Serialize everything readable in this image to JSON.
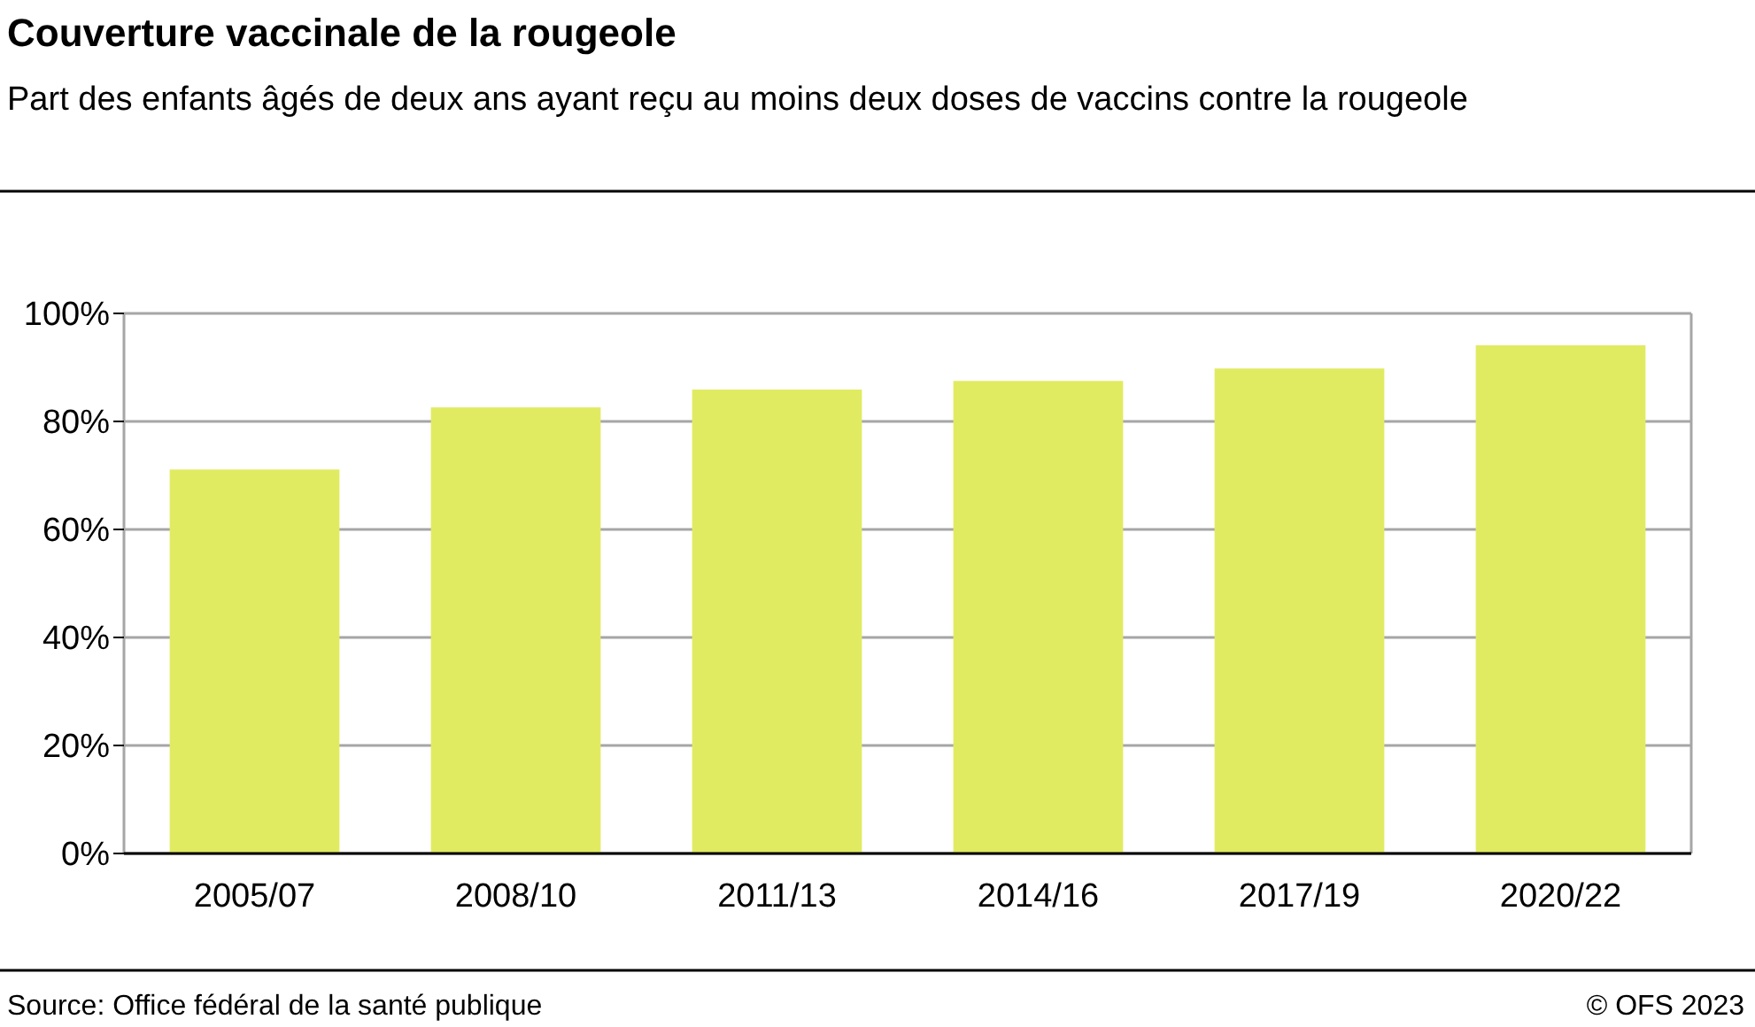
{
  "chart_data": {
    "type": "bar",
    "title": "Couverture vaccinale de la rougeole",
    "subtitle": "Part des enfants âgés de deux ans ayant reçu au moins deux doses de vaccins contre la rougeole",
    "categories": [
      "2005/07",
      "2008/10",
      "2011/13",
      "2014/16",
      "2017/19",
      "2020/22"
    ],
    "values": [
      71.1,
      82.6,
      85.9,
      87.5,
      89.8,
      94.1
    ],
    "color": "#e1eb62",
    "ylim": [
      0,
      100
    ],
    "yticks": [
      {
        "value": 0,
        "label": "0%"
      },
      {
        "value": 20,
        "label": "20%"
      },
      {
        "value": 40,
        "label": "40%"
      },
      {
        "value": 60,
        "label": "60%"
      },
      {
        "value": 80,
        "label": "80%"
      },
      {
        "value": 100,
        "label": "100%"
      }
    ],
    "grid": "y",
    "annotations": [
      "Source: Office fédéral de la santé publique",
      "© OFS 2023"
    ]
  }
}
